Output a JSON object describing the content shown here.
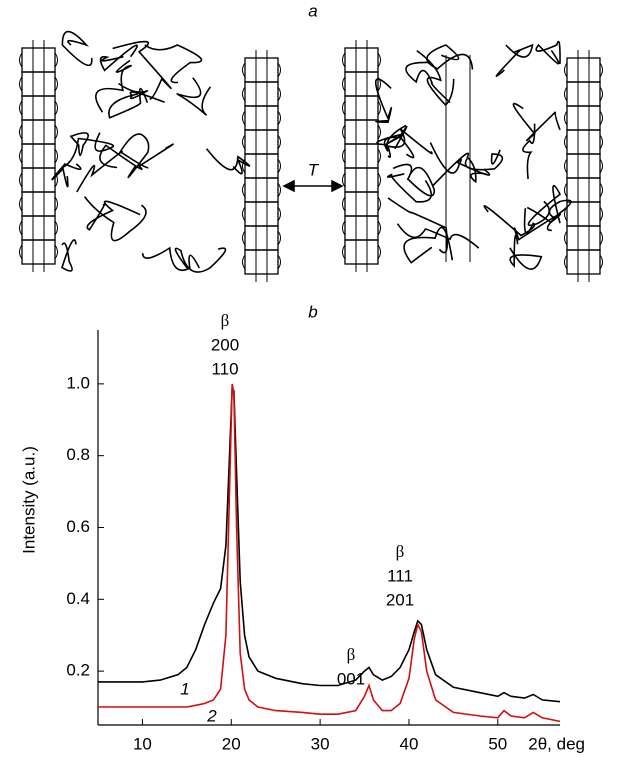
{
  "diagram": {
    "label": "a",
    "arrow_label": "T"
  },
  "chart_data": {
    "type": "line",
    "title": "b",
    "x_label": "2θ, deg",
    "y_label": "Intensity (a.u.)",
    "xlim": [
      5,
      57
    ],
    "xticks": [
      10,
      20,
      30,
      40,
      50
    ],
    "ylim": [
      0.05,
      1.15
    ],
    "yticks": [
      0.2,
      0.4,
      0.6,
      0.8,
      {
        "value": 1,
        "label": "1.0"
      }
    ],
    "x": [
      5,
      8,
      10,
      12,
      14,
      15,
      16,
      17,
      18,
      18.8,
      19.4,
      19.8,
      20.1,
      20.3,
      20.6,
      21,
      21.5,
      22,
      23,
      25,
      28,
      30,
      32,
      34,
      35,
      35.5,
      36,
      37,
      38,
      39,
      40,
      40.6,
      41,
      41.4,
      42,
      43,
      45,
      48,
      50,
      50.7,
      51.5,
      53,
      54,
      55,
      57
    ],
    "series": [
      {
        "name": "1",
        "color": "#000000",
        "values": [
          0.17,
          0.17,
          0.17,
          0.175,
          0.19,
          0.21,
          0.26,
          0.33,
          0.39,
          0.43,
          0.55,
          0.8,
          0.99,
          0.98,
          0.75,
          0.45,
          0.3,
          0.24,
          0.2,
          0.18,
          0.165,
          0.16,
          0.16,
          0.175,
          0.2,
          0.21,
          0.19,
          0.175,
          0.185,
          0.21,
          0.26,
          0.31,
          0.34,
          0.33,
          0.26,
          0.19,
          0.155,
          0.14,
          0.13,
          0.14,
          0.13,
          0.125,
          0.135,
          0.12,
          0.115
        ]
      },
      {
        "name": "2",
        "color": "#d01010",
        "values": [
          0.1,
          0.1,
          0.1,
          0.1,
          0.1,
          0.1,
          0.105,
          0.11,
          0.12,
          0.15,
          0.3,
          0.7,
          1.0,
          0.97,
          0.6,
          0.25,
          0.15,
          0.12,
          0.1,
          0.09,
          0.085,
          0.08,
          0.08,
          0.09,
          0.13,
          0.16,
          0.12,
          0.09,
          0.09,
          0.11,
          0.18,
          0.29,
          0.33,
          0.31,
          0.2,
          0.12,
          0.085,
          0.075,
          0.07,
          0.09,
          0.075,
          0.07,
          0.085,
          0.07,
          0.06
        ]
      }
    ],
    "annotations": [
      [
        "β",
        "200",
        "110"
      ],
      [
        "β",
        "001"
      ],
      [
        "β",
        "111",
        "201"
      ]
    ]
  }
}
